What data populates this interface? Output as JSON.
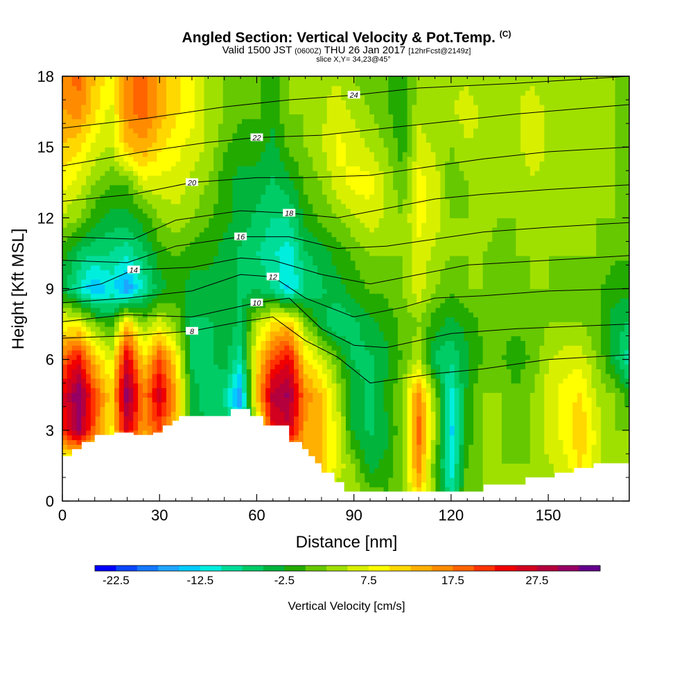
{
  "chart_data": {
    "type": "heatmap",
    "title": "Angled Section: Vertical Velocity & Pot.Temp.",
    "title_unit": "(C)",
    "subtitle_prefix": "Valid 1500 JST",
    "subtitle_utc": "(0600Z)",
    "subtitle_date": "THU 26 Jan 2017",
    "subtitle_fcst": "[12hrFcst@2149z]",
    "slice_label": "slice X,Y= 34,23@45°",
    "xlabel": "Distance [nm]",
    "ylabel": "Height [Kft MSL]",
    "xlim": [
      0,
      175
    ],
    "ylim": [
      0,
      18
    ],
    "x_ticks": [
      0,
      30,
      60,
      90,
      120,
      150
    ],
    "y_ticks": [
      0,
      3,
      6,
      9,
      12,
      15,
      18
    ],
    "colorbar": {
      "title": "Vertical Velocity [cm/s]",
      "labels": [
        "-22.5",
        "-12.5",
        "-2.5",
        "7.5",
        "17.5",
        "27.5"
      ],
      "colors": [
        "#0000ff",
        "#0a46ff",
        "#1478ff",
        "#1ea6ff",
        "#00ccff",
        "#00eedd",
        "#00dd99",
        "#00cc66",
        "#00b43c",
        "#22aa00",
        "#66c800",
        "#a0e000",
        "#d8f000",
        "#ffff00",
        "#ffd800",
        "#ffb000",
        "#ff8c00",
        "#ff6400",
        "#ff3200",
        "#f00000",
        "#d2001e",
        "#b4003c",
        "#960064",
        "#64008c"
      ]
    },
    "velocity_field": {
      "columns_x": [
        0,
        5,
        10,
        15,
        20,
        25,
        30,
        35,
        40,
        45,
        50,
        55,
        60,
        65,
        70,
        75,
        80,
        85,
        90,
        95,
        100,
        105,
        110,
        115,
        120,
        125,
        130,
        135,
        140,
        145,
        150,
        155,
        160,
        165,
        170,
        175
      ],
      "layers_y": [
        0,
        1.5,
        3,
        4.5,
        6,
        7.5,
        9,
        10.5,
        12,
        13.5,
        15,
        16.5,
        18
      ],
      "values": [
        [
          0,
          0,
          0,
          0,
          0,
          0,
          0,
          0,
          0,
          0,
          0,
          0,
          0,
          0,
          0,
          0,
          0,
          0,
          2,
          0,
          -2,
          0,
          8,
          0,
          -12,
          0,
          0,
          0,
          0,
          0,
          0,
          0,
          2,
          2,
          0,
          0
        ],
        [
          0,
          0,
          0,
          0,
          0,
          0,
          0,
          0,
          0,
          0,
          0,
          0,
          0,
          0,
          0,
          12,
          10,
          4,
          0,
          -6,
          -4,
          0,
          14,
          -2,
          -14,
          -2,
          0,
          0,
          0,
          0,
          2,
          4,
          8,
          4,
          0,
          0
        ],
        [
          20,
          28,
          16,
          6,
          24,
          12,
          18,
          10,
          -4,
          -8,
          -8,
          -14,
          0,
          22,
          24,
          12,
          10,
          4,
          -6,
          -8,
          -6,
          0,
          16,
          2,
          -16,
          -4,
          0,
          0,
          -2,
          0,
          4,
          6,
          10,
          4,
          0,
          0
        ],
        [
          22,
          30,
          18,
          8,
          30,
          14,
          24,
          12,
          -6,
          -10,
          -10,
          -20,
          10,
          26,
          28,
          14,
          10,
          2,
          -6,
          -8,
          -4,
          0,
          14,
          0,
          -14,
          -4,
          0,
          0,
          -2,
          0,
          4,
          6,
          8,
          2,
          0,
          -4
        ],
        [
          16,
          22,
          10,
          4,
          24,
          8,
          18,
          8,
          -8,
          -8,
          -6,
          -12,
          8,
          18,
          22,
          8,
          4,
          -2,
          -8,
          -8,
          -6,
          -2,
          2,
          -8,
          -10,
          -6,
          -2,
          -2,
          -4,
          -2,
          2,
          4,
          4,
          0,
          -6,
          -12
        ],
        [
          6,
          6,
          0,
          -4,
          10,
          0,
          4,
          0,
          -8,
          -8,
          -6,
          -8,
          2,
          8,
          10,
          0,
          -6,
          -10,
          -8,
          -6,
          -4,
          -2,
          0,
          -4,
          -6,
          -4,
          -2,
          -2,
          -2,
          -2,
          0,
          0,
          0,
          -2,
          -6,
          -8
        ],
        [
          -6,
          -12,
          -18,
          -14,
          -20,
          -12,
          -6,
          -4,
          -6,
          -6,
          -6,
          -8,
          -8,
          -10,
          -16,
          -10,
          -8,
          -6,
          -4,
          -2,
          -2,
          0,
          4,
          0,
          -2,
          0,
          0,
          -2,
          -2,
          0,
          0,
          -2,
          -2,
          -2,
          -4,
          -4
        ],
        [
          -4,
          -8,
          -10,
          -10,
          -12,
          -8,
          -4,
          -2,
          -4,
          -4,
          -6,
          -8,
          -10,
          -12,
          -14,
          -8,
          -6,
          -4,
          -2,
          0,
          0,
          0,
          4,
          2,
          0,
          0,
          0,
          -2,
          0,
          0,
          0,
          0,
          0,
          0,
          -2,
          -2
        ],
        [
          2,
          0,
          -4,
          -6,
          -6,
          -4,
          0,
          2,
          0,
          -2,
          -4,
          -6,
          -8,
          -10,
          -10,
          -4,
          -2,
          0,
          2,
          4,
          2,
          0,
          6,
          4,
          0,
          0,
          2,
          0,
          0,
          2,
          2,
          0,
          0,
          0,
          0,
          0
        ],
        [
          6,
          4,
          0,
          -2,
          -2,
          4,
          4,
          4,
          2,
          0,
          -4,
          -6,
          -6,
          -8,
          -6,
          -2,
          0,
          4,
          6,
          6,
          2,
          -2,
          6,
          4,
          -2,
          0,
          2,
          0,
          0,
          2,
          2,
          0,
          2,
          0,
          0,
          -2
        ],
        [
          10,
          8,
          4,
          2,
          10,
          12,
          8,
          6,
          4,
          2,
          -2,
          -4,
          -4,
          -6,
          -2,
          0,
          2,
          6,
          4,
          2,
          0,
          -4,
          4,
          2,
          0,
          2,
          2,
          0,
          2,
          4,
          2,
          0,
          2,
          0,
          0,
          -2
        ],
        [
          12,
          14,
          8,
          4,
          14,
          16,
          12,
          8,
          6,
          2,
          0,
          -2,
          -2,
          -4,
          0,
          0,
          2,
          4,
          2,
          0,
          -2,
          -4,
          2,
          0,
          2,
          4,
          2,
          0,
          2,
          4,
          2,
          0,
          0,
          0,
          0,
          -2
        ],
        [
          14,
          16,
          10,
          6,
          14,
          16,
          12,
          8,
          6,
          2,
          0,
          -2,
          -2,
          -4,
          0,
          0,
          2,
          2,
          0,
          -2,
          -2,
          -4,
          0,
          0,
          2,
          2,
          0,
          0,
          2,
          2,
          0,
          0,
          0,
          0,
          0,
          -2
        ]
      ]
    },
    "terrain": {
      "x": [
        0,
        3,
        3,
        6,
        6,
        10,
        10,
        16,
        16,
        22,
        22,
        28,
        28,
        31,
        31,
        34,
        34,
        36,
        36,
        52,
        52,
        58,
        58,
        62,
        62,
        70,
        70,
        74,
        74,
        76,
        76,
        78,
        78,
        80,
        80,
        84,
        84,
        87,
        87,
        130,
        130,
        143,
        143,
        152,
        152,
        158,
        158,
        164,
        164,
        175
      ],
      "y": [
        1.9,
        1.9,
        2.2,
        2.2,
        2.5,
        2.5,
        2.8,
        2.8,
        2.9,
        2.9,
        2.8,
        2.8,
        2.9,
        2.9,
        3.2,
        3.2,
        3.4,
        3.4,
        3.6,
        3.6,
        3.9,
        3.9,
        3.6,
        3.6,
        3.2,
        3.2,
        2.5,
        2.5,
        2.2,
        2.2,
        1.9,
        1.9,
        1.6,
        1.6,
        1.2,
        1.2,
        0.8,
        0.8,
        0.4,
        0.4,
        0.7,
        0.7,
        1.0,
        1.0,
        1.2,
        1.2,
        1.4,
        1.4,
        1.6,
        1.6
      ]
    },
    "isentropes": [
      {
        "label": "8",
        "x": [
          0,
          20,
          40,
          55,
          65,
          75,
          85,
          95,
          105,
          115,
          130,
          150,
          175
        ],
        "y": [
          6.9,
          7.0,
          7.2,
          7.6,
          7.8,
          6.8,
          6.1,
          5.0,
          5.2,
          5.4,
          5.6,
          6.0,
          6.2
        ]
      },
      {
        "label": "10",
        "x": [
          0,
          20,
          40,
          60,
          70,
          80,
          90,
          100,
          110,
          120,
          140,
          175
        ],
        "y": [
          7.6,
          7.9,
          7.8,
          8.4,
          8.6,
          7.3,
          6.6,
          6.5,
          6.8,
          7.1,
          7.3,
          7.5
        ]
      },
      {
        "label": "12",
        "x": [
          0,
          20,
          40,
          55,
          65,
          75,
          90,
          105,
          115,
          130,
          150,
          175
        ],
        "y": [
          8.4,
          8.6,
          8.9,
          9.6,
          9.5,
          8.6,
          7.8,
          8.2,
          8.6,
          8.7,
          8.9,
          9.0
        ]
      },
      {
        "label": "14",
        "x": [
          0,
          12,
          22,
          40,
          55,
          65,
          80,
          95,
          110,
          125,
          150,
          175
        ],
        "y": [
          8.9,
          9.2,
          9.8,
          9.9,
          10.3,
          10.2,
          9.6,
          9.2,
          9.6,
          10.0,
          10.2,
          10.4
        ]
      },
      {
        "label": "16",
        "x": [
          0,
          20,
          35,
          55,
          70,
          85,
          100,
          115,
          130,
          150,
          175
        ],
        "y": [
          10.2,
          10.1,
          10.8,
          11.2,
          11.2,
          10.7,
          10.8,
          11.1,
          11.4,
          11.6,
          11.8
        ]
      },
      {
        "label": "18",
        "x": [
          0,
          22,
          35,
          55,
          70,
          85,
          100,
          115,
          130,
          150,
          175
        ],
        "y": [
          11.2,
          11.1,
          11.9,
          12.3,
          12.2,
          12.0,
          12.4,
          12.8,
          13.0,
          13.2,
          13.4
        ]
      },
      {
        "label": "20",
        "x": [
          0,
          22,
          40,
          60,
          75,
          95,
          115,
          130,
          150,
          175
        ],
        "y": [
          12.7,
          13.0,
          13.5,
          13.7,
          13.7,
          13.8,
          14.2,
          14.5,
          14.8,
          15.0
        ]
      },
      {
        "label": "22",
        "x": [
          0,
          25,
          45,
          60,
          80,
          100,
          120,
          140,
          175
        ],
        "y": [
          14.2,
          14.8,
          15.2,
          15.4,
          15.5,
          15.8,
          16.1,
          16.4,
          16.8
        ]
      },
      {
        "label": "24",
        "x": [
          0,
          25,
          50,
          70,
          90,
          110,
          140,
          175
        ],
        "y": [
          15.8,
          16.2,
          16.7,
          17.0,
          17.2,
          17.5,
          17.7,
          18.0
        ]
      }
    ],
    "grid": false
  }
}
